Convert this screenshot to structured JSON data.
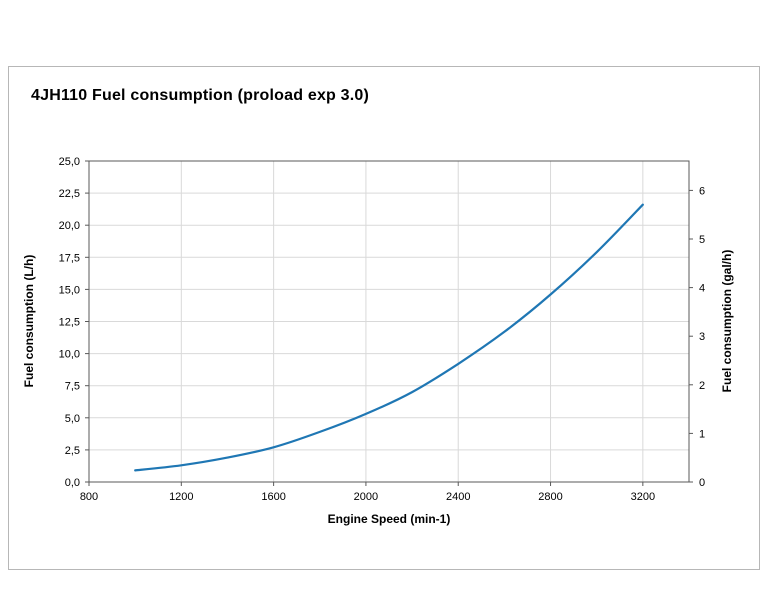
{
  "chart_data": {
    "type": "line",
    "title": "4JH110 Fuel consumption (proload exp 3.0)",
    "xlabel": "Engine Speed (min-1)",
    "ylabel_left": "Fuel consumption (L/h)",
    "ylabel_right": "Fuel consumption (gal/h)",
    "x": [
      1000,
      1200,
      1400,
      1600,
      1800,
      2000,
      2200,
      2400,
      2600,
      2800,
      3000,
      3200
    ],
    "y_lh": [
      0.9,
      1.3,
      1.9,
      2.7,
      3.9,
      5.3,
      7.0,
      9.2,
      11.7,
      14.6,
      17.9,
      21.6
    ],
    "xlim": [
      800,
      3400
    ],
    "ylim_left": [
      0,
      25
    ],
    "x_ticks": [
      800,
      1200,
      1600,
      2000,
      2400,
      2800,
      3200
    ],
    "y_ticks_left_labels": [
      "0,0",
      "2,5",
      "5,0",
      "7,5",
      "10,0",
      "12,5",
      "15,0",
      "17,5",
      "20,0",
      "22,5",
      "25,0"
    ],
    "y_ticks_left_values": [
      0,
      2.5,
      5,
      7.5,
      10,
      12.5,
      15,
      17.5,
      20,
      22.5,
      25
    ],
    "y_ticks_right_values": [
      0,
      1,
      2,
      3,
      4,
      5,
      6
    ],
    "liters_per_gallon": 3.785,
    "grid": true,
    "legend": "none",
    "line_color": "#1f77b4",
    "grid_color": "#d9d9d9",
    "axis_color": "#595959"
  }
}
